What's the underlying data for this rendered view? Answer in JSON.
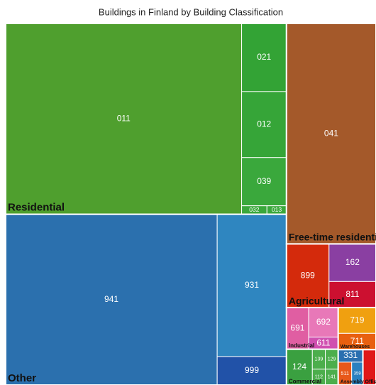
{
  "chart_data": {
    "type": "treemap",
    "title": "Buildings in Finland by Building Classification",
    "groups": [
      {
        "name": "Residential",
        "children": [
          {
            "label": "011",
            "value": 87694,
            "color": "#4f9f2e"
          },
          {
            "label": "021",
            "value": 5952,
            "color": "#33a335"
          },
          {
            "label": "012",
            "value": 5766,
            "color": "#36a538"
          },
          {
            "label": "039",
            "value": 4216,
            "color": "#3aa83c"
          },
          {
            "label": "032",
            "value": 420,
            "color": "#3aa83c"
          },
          {
            "label": "013",
            "value": 324,
            "color": "#3aa83c"
          }
        ]
      },
      {
        "name": "Other",
        "children": [
          {
            "label": "941",
            "value": 70320,
            "color": "#2b70ae"
          },
          {
            "label": "931",
            "value": 19200,
            "color": "#2f86c0"
          },
          {
            "label": "999",
            "value": 3840,
            "color": "#2152a8"
          }
        ]
      },
      {
        "name": "Free-time residential",
        "children": [
          {
            "label": "041",
            "value": 38437,
            "color": "#a4592a"
          }
        ]
      },
      {
        "name": "Agricultural",
        "children": [
          {
            "label": "899",
            "value": 5270,
            "color": "#d42a0c"
          },
          {
            "label": "162",
            "value": 3440,
            "color": "#8a3fa2"
          },
          {
            "label": "811",
            "value": 2380,
            "color": "#cc1030"
          }
        ]
      },
      {
        "name": "Industrial",
        "children": [
          {
            "label": "691",
            "value": 1800,
            "color": "#e05ea2"
          },
          {
            "label": "692",
            "value": 1700,
            "color": "#e878b8"
          },
          {
            "label": "611",
            "value": 700,
            "color": "#d050b0"
          }
        ]
      },
      {
        "name": "Commercial",
        "children": [
          {
            "label": "124",
            "value": 1800,
            "color": "#3aa040"
          },
          {
            "label": "139",
            "value": 500,
            "color": "#4cae4c"
          },
          {
            "label": "129",
            "value": 500,
            "color": "#4cae4c"
          },
          {
            "label": "112",
            "value": 400,
            "color": "#4cae4c"
          },
          {
            "label": "141",
            "value": 400,
            "color": "#4cae4c"
          }
        ]
      },
      {
        "name": "Warehouses",
        "children": [
          {
            "label": "719",
            "value": 1900,
            "color": "#f0a010"
          },
          {
            "label": "711",
            "value": 1200,
            "color": "#e86010"
          }
        ]
      },
      {
        "name": "Assembly",
        "children": [
          {
            "label": "331",
            "value": 600,
            "color": "#2a6fb0"
          },
          {
            "label": "511",
            "value": 600,
            "color": "#e8581a"
          },
          {
            "label": "359",
            "value": 500,
            "color": "#2a80c0"
          }
        ]
      },
      {
        "name": "Office",
        "children": [
          {
            "label": null,
            "value": 900,
            "color": "#e01818"
          }
        ]
      }
    ]
  }
}
